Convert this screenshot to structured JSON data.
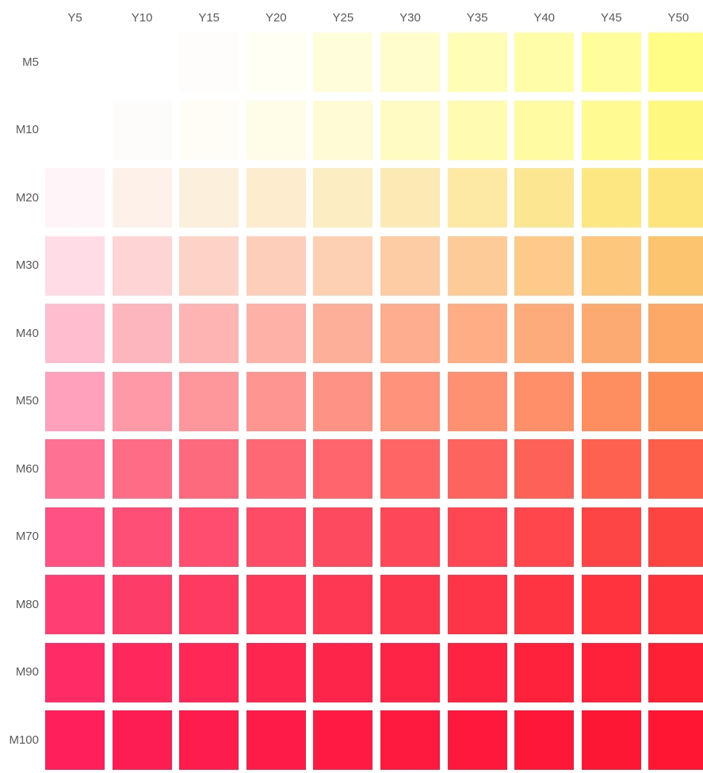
{
  "columns": [
    {
      "label": "Y5"
    },
    {
      "label": "Y10"
    },
    {
      "label": "Y15"
    },
    {
      "label": "Y20"
    },
    {
      "label": "Y25"
    },
    {
      "label": "Y30"
    },
    {
      "label": "Y35"
    },
    {
      "label": "Y40"
    },
    {
      "label": "Y45"
    },
    {
      "label": "Y50"
    }
  ],
  "rows": [
    {
      "label": "M5",
      "colors": [
        "#ffffff",
        "#ffffff",
        "#fefdfb",
        "#fffff4",
        "#fffdda",
        "#fffdcc",
        "#fffdb6",
        "#fffda8",
        "#fffe9a",
        "#fffd84"
      ]
    },
    {
      "label": "M10",
      "colors": [
        "#ffffff",
        "#fefcfb",
        "#fffdf5",
        "#fffce8",
        "#fffcd5",
        "#fffbc3",
        "#fffbb1",
        "#fffba2",
        "#fffb92",
        "#fffa7f"
      ]
    },
    {
      "label": "M20",
      "colors": [
        "#fff4f7",
        "#fef1ea",
        "#fcefdb",
        "#fdeccd",
        "#fdedc3",
        "#fbeab3",
        "#fde9a3",
        "#fde692",
        "#fde782",
        "#fde57c"
      ]
    },
    {
      "label": "M30",
      "colors": [
        "#ffdce6",
        "#fed5d4",
        "#fdd3c8",
        "#fdcfba",
        "#fdd0b1",
        "#fdcca4",
        "#fdcb97",
        "#fdca8a",
        "#fdc77d",
        "#fdc46f"
      ]
    },
    {
      "label": "M40",
      "colors": [
        "#ffbdd0",
        "#feb6be",
        "#feb4b2",
        "#feb1a6",
        "#feaf9a",
        "#feae8f",
        "#fead85",
        "#fdab7b",
        "#fdaa72",
        "#fda867"
      ]
    },
    {
      "label": "M50",
      "colors": [
        "#ffa0bd",
        "#fe99a8",
        "#fe979c",
        "#fe9590",
        "#fe9385",
        "#fe927b",
        "#fe9171",
        "#fe8f68",
        "#fe8e5f",
        "#fd8c56"
      ]
    },
    {
      "label": "M60",
      "colors": [
        "#ff7193",
        "#fe6c86",
        "#fe6a7d",
        "#fe6874",
        "#fe666c",
        "#fe6565",
        "#fe635e",
        "#fe6257",
        "#fe6150",
        "#fe5f4a"
      ]
    },
    {
      "label": "M70",
      "colors": [
        "#ff5283",
        "#fe4f77",
        "#fe4d6e",
        "#fe4b66",
        "#fe4a5f",
        "#fe4858",
        "#fe4752",
        "#fe464c",
        "#fe4546",
        "#fe4441"
      ]
    },
    {
      "label": "M80",
      "colors": [
        "#ff3f73",
        "#fe3c68",
        "#fe3a60",
        "#fe3959",
        "#fe3853",
        "#fe364d",
        "#fe3548",
        "#fe3443",
        "#fe333e",
        "#fe323a"
      ]
    },
    {
      "label": "M90",
      "colors": [
        "#ff2b66",
        "#fe285c",
        "#fe2755",
        "#fe264f",
        "#fe254a",
        "#fe2445",
        "#fe2341",
        "#fe223d",
        "#fe2139",
        "#fe2035"
      ]
    },
    {
      "label": "M100",
      "colors": [
        "#ff1f5a",
        "#fe1d52",
        "#fe1c4c",
        "#fe1b47",
        "#fe1a43",
        "#fe193f",
        "#fe183b",
        "#fe1838",
        "#fe1735",
        "#fe1632"
      ]
    }
  ]
}
